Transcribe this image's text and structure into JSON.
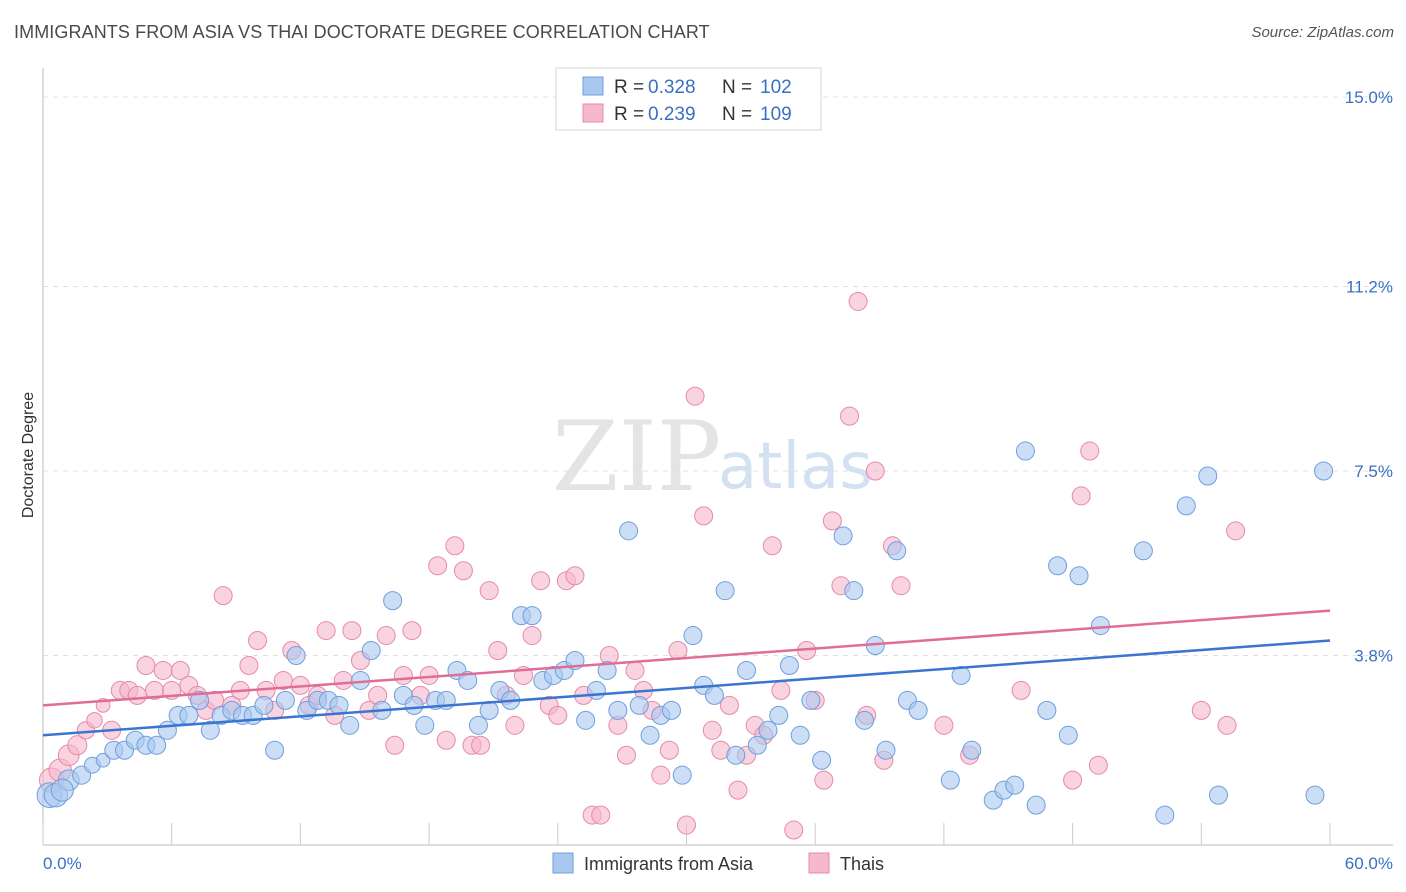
{
  "title": "IMMIGRANTS FROM ASIA VS THAI DOCTORATE DEGREE CORRELATION CHART",
  "source": "Source: ZipAtlas.com",
  "watermark": {
    "zip": "ZIP",
    "atlas": "atlas"
  },
  "legend": {
    "r_label": "R =",
    "n_label": "N =",
    "rows": [
      {
        "r": "0.328",
        "n": "102",
        "color": "#a8c8f0"
      },
      {
        "r": "0.239",
        "n": "109",
        "color": "#f5b8cc"
      }
    ]
  },
  "colors": {
    "blue_fill": "#a8c8f0",
    "blue_stroke": "#6f9fdc",
    "blue_line": "#3a75d0",
    "pink_fill": "#f5b8cc",
    "pink_stroke": "#e58aa8",
    "pink_line": "#e06d98",
    "tick_text": "#3a6fc4",
    "grid": "#e0e0e0"
  },
  "chart_data": {
    "type": "scatter",
    "ylabel": "Doctorate Degree",
    "xlim": [
      0,
      60
    ],
    "ylim": [
      0,
      15
    ],
    "x_tick_labels": [
      "0.0%",
      "60.0%"
    ],
    "y_tick_values": [
      3.8,
      7.5,
      11.2,
      15.0
    ],
    "y_tick_labels": [
      "3.8%",
      "7.5%",
      "11.2%",
      "15.0%"
    ],
    "grid": "horizontal dashed",
    "legend_position": "top-center",
    "series": [
      {
        "name": "Immigrants from Asia",
        "r": 0.328,
        "n": 102,
        "trend": {
          "x0": 0,
          "y0": 2.2,
          "x1": 60,
          "y1": 4.1
        },
        "points": [
          [
            0.3,
            1.0
          ],
          [
            0.6,
            1.0
          ],
          [
            1.2,
            1.3
          ],
          [
            1.8,
            1.4
          ],
          [
            2.3,
            1.6
          ],
          [
            2.8,
            1.7
          ],
          [
            3.3,
            1.9
          ],
          [
            3.8,
            1.9
          ],
          [
            4.3,
            2.1
          ],
          [
            4.8,
            2.0
          ],
          [
            5.3,
            2.0
          ],
          [
            5.8,
            2.3
          ],
          [
            6.3,
            2.6
          ],
          [
            6.8,
            2.6
          ],
          [
            7.3,
            2.9
          ],
          [
            7.8,
            2.3
          ],
          [
            8.3,
            2.6
          ],
          [
            8.8,
            2.7
          ],
          [
            9.3,
            2.6
          ],
          [
            9.8,
            2.6
          ],
          [
            10.3,
            2.8
          ],
          [
            10.8,
            1.9
          ],
          [
            11.3,
            2.9
          ],
          [
            11.8,
            3.8
          ],
          [
            12.3,
            2.7
          ],
          [
            12.8,
            2.9
          ],
          [
            13.3,
            2.9
          ],
          [
            13.8,
            2.8
          ],
          [
            14.3,
            2.4
          ],
          [
            14.8,
            3.3
          ],
          [
            15.3,
            3.9
          ],
          [
            15.8,
            2.7
          ],
          [
            16.3,
            4.9
          ],
          [
            16.8,
            3.0
          ],
          [
            17.3,
            2.8
          ],
          [
            17.8,
            2.4
          ],
          [
            18.3,
            2.9
          ],
          [
            18.8,
            2.9
          ],
          [
            19.3,
            3.5
          ],
          [
            19.8,
            3.3
          ],
          [
            20.3,
            2.4
          ],
          [
            20.8,
            2.7
          ],
          [
            21.3,
            3.1
          ],
          [
            21.8,
            2.9
          ],
          [
            22.3,
            4.6
          ],
          [
            22.8,
            4.6
          ],
          [
            23.3,
            3.3
          ],
          [
            23.8,
            3.4
          ],
          [
            24.3,
            3.5
          ],
          [
            24.8,
            3.7
          ],
          [
            25.3,
            2.5
          ],
          [
            25.8,
            3.1
          ],
          [
            26.3,
            3.5
          ],
          [
            26.8,
            2.7
          ],
          [
            27.3,
            6.3
          ],
          [
            27.8,
            2.8
          ],
          [
            28.3,
            2.2
          ],
          [
            28.8,
            2.6
          ],
          [
            29.3,
            2.7
          ],
          [
            29.8,
            1.4
          ],
          [
            30.3,
            4.2
          ],
          [
            30.8,
            3.2
          ],
          [
            31.3,
            3.0
          ],
          [
            31.8,
            5.1
          ],
          [
            32.3,
            1.8
          ],
          [
            32.8,
            3.5
          ],
          [
            33.3,
            2.0
          ],
          [
            33.8,
            2.3
          ],
          [
            34.3,
            2.6
          ],
          [
            34.8,
            3.6
          ],
          [
            35.3,
            2.2
          ],
          [
            35.8,
            2.9
          ],
          [
            36.3,
            1.7
          ],
          [
            37.3,
            6.2
          ],
          [
            37.8,
            5.1
          ],
          [
            38.3,
            2.5
          ],
          [
            38.8,
            4.0
          ],
          [
            39.3,
            1.9
          ],
          [
            39.8,
            5.9
          ],
          [
            40.3,
            2.9
          ],
          [
            40.8,
            2.7
          ],
          [
            42.3,
            1.3
          ],
          [
            42.8,
            3.4
          ],
          [
            43.3,
            1.9
          ],
          [
            44.3,
            0.9
          ],
          [
            44.8,
            1.1
          ],
          [
            45.3,
            1.2
          ],
          [
            45.8,
            7.9
          ],
          [
            46.3,
            0.8
          ],
          [
            46.8,
            2.7
          ],
          [
            47.3,
            5.6
          ],
          [
            47.8,
            2.2
          ],
          [
            48.3,
            5.4
          ],
          [
            49.3,
            4.4
          ],
          [
            51.3,
            5.9
          ],
          [
            52.3,
            0.6
          ],
          [
            53.3,
            6.8
          ],
          [
            54.3,
            7.4
          ],
          [
            54.8,
            1.0
          ],
          [
            59.3,
            1.0
          ],
          [
            59.7,
            7.5
          ],
          [
            0.9,
            1.1
          ]
        ]
      },
      {
        "name": "Thais",
        "r": 0.239,
        "n": 109,
        "trend": {
          "x0": 0,
          "y0": 2.8,
          "x1": 60,
          "y1": 4.7
        },
        "points": [
          [
            0.4,
            1.3
          ],
          [
            0.8,
            1.5
          ],
          [
            1.2,
            1.8
          ],
          [
            1.6,
            2.0
          ],
          [
            2.0,
            2.3
          ],
          [
            2.4,
            2.5
          ],
          [
            2.8,
            2.8
          ],
          [
            3.2,
            2.3
          ],
          [
            3.6,
            3.1
          ],
          [
            4.0,
            3.1
          ],
          [
            4.4,
            3.0
          ],
          [
            4.8,
            3.6
          ],
          [
            5.2,
            3.1
          ],
          [
            5.6,
            3.5
          ],
          [
            6.0,
            3.1
          ],
          [
            6.4,
            3.5
          ],
          [
            6.8,
            3.2
          ],
          [
            7.2,
            3.0
          ],
          [
            7.6,
            2.7
          ],
          [
            8.0,
            2.9
          ],
          [
            8.4,
            5.0
          ],
          [
            8.8,
            2.8
          ],
          [
            9.2,
            3.1
          ],
          [
            9.6,
            3.6
          ],
          [
            10.0,
            4.1
          ],
          [
            10.4,
            3.1
          ],
          [
            10.8,
            2.7
          ],
          [
            11.2,
            3.3
          ],
          [
            11.6,
            3.9
          ],
          [
            12.0,
            3.2
          ],
          [
            12.4,
            2.8
          ],
          [
            12.8,
            3.0
          ],
          [
            13.2,
            4.3
          ],
          [
            13.6,
            2.6
          ],
          [
            14.0,
            3.3
          ],
          [
            14.4,
            4.3
          ],
          [
            14.8,
            3.7
          ],
          [
            15.2,
            2.7
          ],
          [
            15.6,
            3.0
          ],
          [
            16.0,
            4.2
          ],
          [
            16.4,
            2.0
          ],
          [
            16.8,
            3.4
          ],
          [
            17.2,
            4.3
          ],
          [
            17.6,
            3.0
          ],
          [
            18.0,
            3.4
          ],
          [
            18.4,
            5.6
          ],
          [
            18.8,
            2.1
          ],
          [
            19.2,
            6.0
          ],
          [
            19.6,
            5.5
          ],
          [
            20.0,
            2.0
          ],
          [
            20.4,
            2.0
          ],
          [
            20.8,
            5.1
          ],
          [
            21.2,
            3.9
          ],
          [
            21.6,
            3.0
          ],
          [
            22.0,
            2.4
          ],
          [
            22.4,
            3.4
          ],
          [
            22.8,
            4.2
          ],
          [
            23.2,
            5.3
          ],
          [
            23.6,
            2.8
          ],
          [
            24.0,
            2.6
          ],
          [
            24.4,
            5.3
          ],
          [
            24.8,
            5.4
          ],
          [
            25.2,
            3.0
          ],
          [
            25.6,
            0.6
          ],
          [
            26.0,
            0.6
          ],
          [
            26.4,
            3.8
          ],
          [
            26.8,
            2.4
          ],
          [
            27.2,
            1.8
          ],
          [
            27.6,
            3.5
          ],
          [
            28.0,
            3.1
          ],
          [
            28.4,
            2.7
          ],
          [
            28.8,
            1.4
          ],
          [
            29.2,
            1.9
          ],
          [
            29.6,
            3.9
          ],
          [
            30.0,
            0.4
          ],
          [
            30.4,
            9.0
          ],
          [
            30.8,
            6.6
          ],
          [
            31.2,
            2.3
          ],
          [
            31.6,
            1.9
          ],
          [
            32.0,
            2.8
          ],
          [
            32.4,
            1.1
          ],
          [
            32.8,
            1.8
          ],
          [
            33.2,
            2.4
          ],
          [
            33.6,
            2.2
          ],
          [
            34.0,
            6.0
          ],
          [
            34.4,
            3.1
          ],
          [
            35.0,
            0.3
          ],
          [
            35.6,
            3.9
          ],
          [
            36.0,
            2.9
          ],
          [
            36.4,
            1.3
          ],
          [
            36.8,
            6.5
          ],
          [
            37.2,
            5.2
          ],
          [
            37.6,
            8.6
          ],
          [
            38.0,
            10.9
          ],
          [
            38.4,
            2.6
          ],
          [
            38.8,
            7.5
          ],
          [
            39.2,
            1.7
          ],
          [
            39.6,
            6.0
          ],
          [
            40.0,
            5.2
          ],
          [
            42.0,
            2.4
          ],
          [
            43.2,
            1.8
          ],
          [
            45.6,
            3.1
          ],
          [
            48.0,
            1.3
          ],
          [
            48.4,
            7.0
          ],
          [
            48.8,
            7.9
          ],
          [
            49.2,
            1.6
          ],
          [
            55.2,
            2.4
          ],
          [
            55.6,
            6.3
          ],
          [
            54.0,
            2.7
          ]
        ]
      }
    ]
  },
  "bottom_legend": [
    {
      "label": "Immigrants from Asia",
      "color": "#a8c8f0"
    },
    {
      "label": "Thais",
      "color": "#f5b8cc"
    }
  ]
}
